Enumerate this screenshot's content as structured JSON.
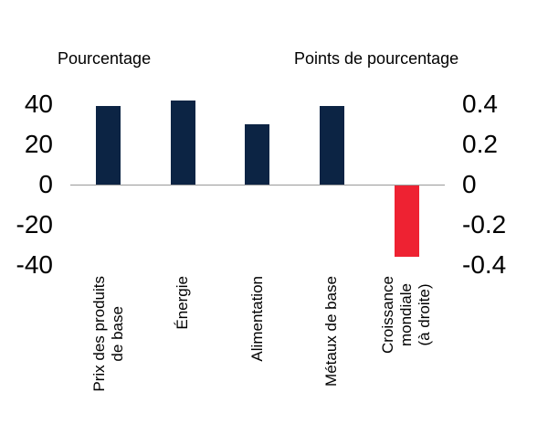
{
  "chart_data": {
    "type": "bar",
    "title": "",
    "grid": false,
    "legend": null,
    "left_axis": {
      "title": "Pourcentage",
      "tick_labels": [
        "40",
        "20",
        "0",
        "-20",
        "-40"
      ],
      "ticks": [
        40,
        20,
        0,
        -20,
        -40
      ],
      "range": [
        -45,
        46
      ]
    },
    "right_axis": {
      "title": "Points de pourcentage",
      "tick_labels": [
        "0.4",
        "0.2",
        "0",
        "-0.2",
        "-0.4"
      ],
      "ticks": [
        0.4,
        0.2,
        0,
        -0.2,
        -0.4
      ],
      "range": [
        -0.45,
        0.46
      ]
    },
    "categories": [
      "Prix des produits de base",
      "Énergie",
      "Alimentation",
      "Métaux de base",
      "Croissance mondiale (à droite)"
    ],
    "bars": [
      {
        "label": "Prix des produits de base",
        "label_lines": [
          "Prix des produits",
          "de base"
        ],
        "value": 39,
        "axis": "left",
        "color": "#0c2444"
      },
      {
        "label": "Énergie",
        "label_lines": [
          "Énergie"
        ],
        "value": 42,
        "axis": "left",
        "color": "#0c2444"
      },
      {
        "label": "Alimentation",
        "label_lines": [
          "Alimentation"
        ],
        "value": 30,
        "axis": "left",
        "color": "#0c2444"
      },
      {
        "label": "Métaux de base",
        "label_lines": [
          "Métaux de base"
        ],
        "value": 39,
        "axis": "left",
        "color": "#0c2444"
      },
      {
        "label": "Croissance mondiale (à droite)",
        "label_lines": [
          "Croissance",
          "mondiale",
          "(à droite)"
        ],
        "value": -0.36,
        "axis": "right",
        "color": "#ee2232"
      }
    ],
    "colors": {
      "navy": "#0c2444",
      "red": "#ee2232",
      "axis_line": "#999999",
      "text": "#000000",
      "background": "#ffffff"
    }
  }
}
